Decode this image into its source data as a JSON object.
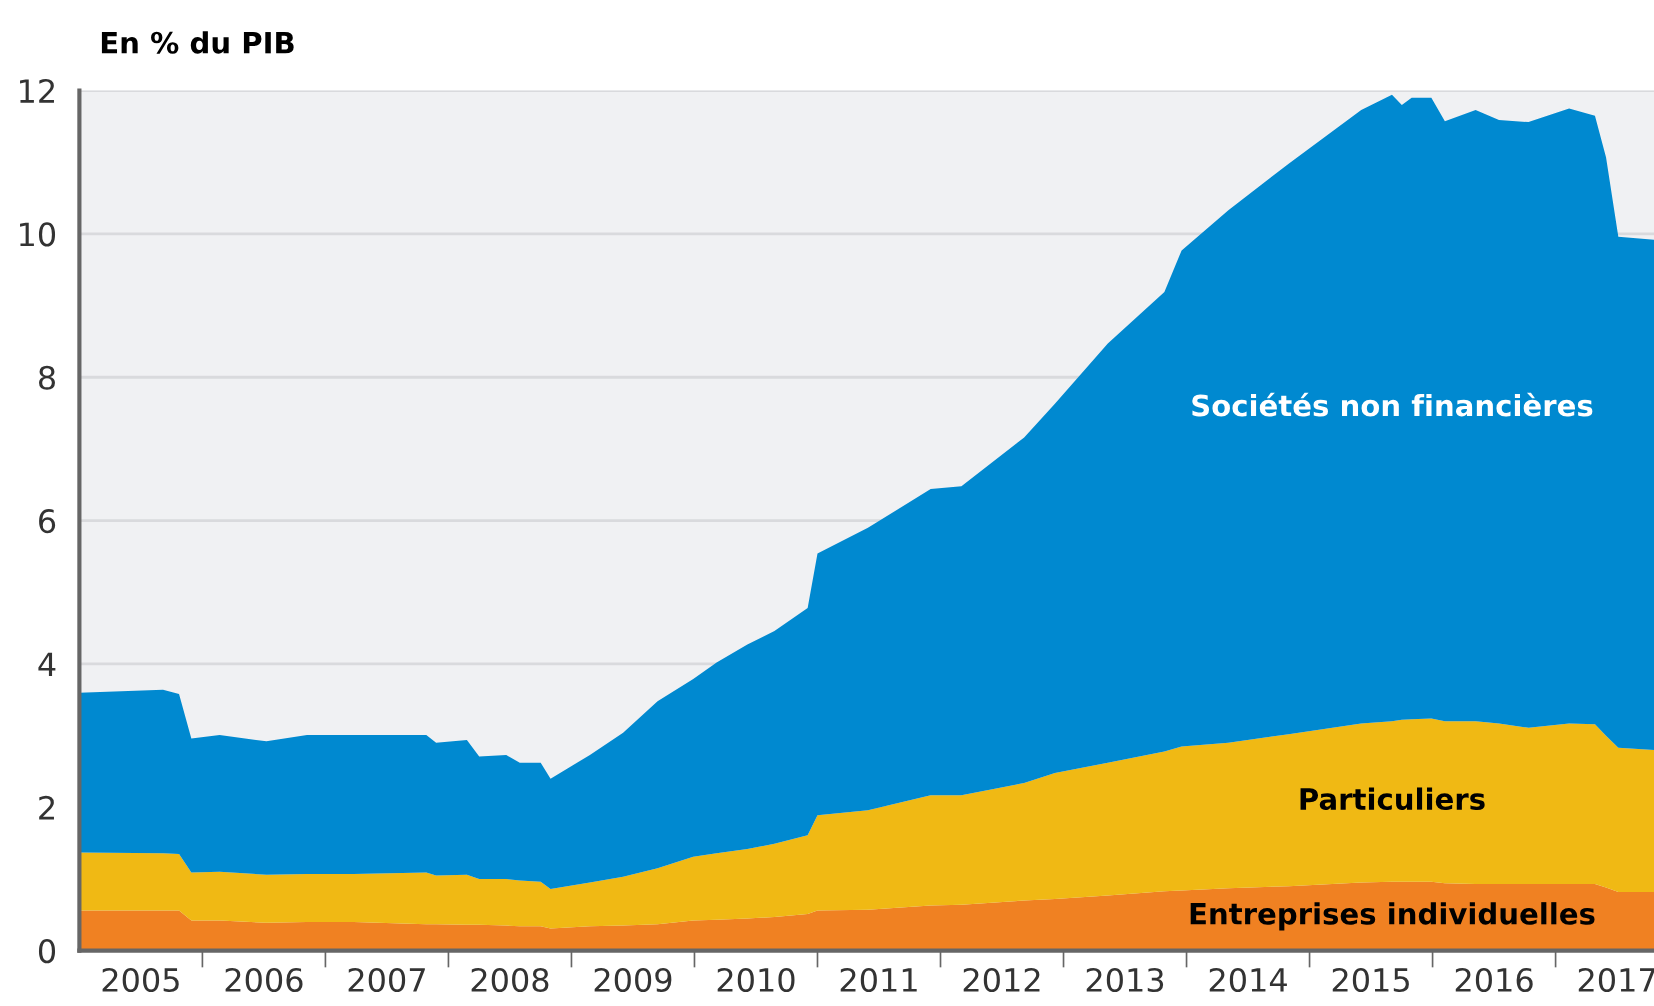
{
  "chart_data": {
    "type": "area",
    "stacked": true,
    "ylabel": "En % du PIB",
    "x": [
      2005.0,
      2005.68,
      2005.81,
      2005.91,
      2006.14,
      2006.52,
      2006.85,
      2007.23,
      2007.82,
      2007.9,
      2008.15,
      2008.25,
      2008.47,
      2008.58,
      2008.75,
      2008.83,
      2009.15,
      2009.42,
      2009.7,
      2009.99,
      2010.18,
      2010.43,
      2010.65,
      2010.92,
      2011.0,
      2011.41,
      2011.92,
      2012.17,
      2012.68,
      2012.93,
      2013.36,
      2013.82,
      2013.96,
      2014.34,
      2014.83,
      2015.42,
      2015.67,
      2015.75,
      2015.83,
      2015.99,
      2016.1,
      2016.35,
      2016.54,
      2016.78,
      2017.11,
      2017.32,
      2017.41,
      2017.51,
      2017.8
    ],
    "series": [
      {
        "name": "Entreprises individuelles",
        "color": "#f08122",
        "values": [
          0.56,
          0.56,
          0.56,
          0.42,
          0.42,
          0.39,
          0.4,
          0.4,
          0.37,
          0.37,
          0.36,
          0.36,
          0.35,
          0.34,
          0.34,
          0.31,
          0.34,
          0.35,
          0.37,
          0.42,
          0.43,
          0.45,
          0.47,
          0.51,
          0.56,
          0.57,
          0.63,
          0.64,
          0.7,
          0.72,
          0.77,
          0.83,
          0.84,
          0.87,
          0.9,
          0.95,
          0.96,
          0.96,
          0.96,
          0.96,
          0.94,
          0.93,
          0.93,
          0.93,
          0.93,
          0.93,
          0.88,
          0.82,
          0.82
        ]
      },
      {
        "name": "Particuliers",
        "color": "#f0b914",
        "values": [
          0.81,
          0.8,
          0.79,
          0.67,
          0.68,
          0.67,
          0.67,
          0.67,
          0.72,
          0.68,
          0.7,
          0.64,
          0.65,
          0.64,
          0.62,
          0.55,
          0.61,
          0.68,
          0.78,
          0.89,
          0.93,
          0.97,
          1.02,
          1.1,
          1.33,
          1.39,
          1.54,
          1.53,
          1.64,
          1.76,
          1.85,
          1.95,
          2.01,
          2.03,
          2.12,
          2.22,
          2.24,
          2.26,
          2.27,
          2.28,
          2.26,
          2.27,
          2.24,
          2.18,
          2.24,
          2.23,
          2.12,
          2.01,
          1.98
        ]
      },
      {
        "name": "Sociétés non financières",
        "color": "#0089d0",
        "values": [
          2.23,
          2.28,
          2.23,
          1.87,
          1.91,
          1.86,
          1.94,
          1.94,
          1.92,
          1.85,
          1.88,
          1.71,
          1.73,
          1.64,
          1.66,
          1.54,
          1.78,
          2.01,
          2.33,
          2.48,
          2.66,
          2.85,
          2.97,
          3.17,
          3.65,
          3.94,
          4.27,
          4.31,
          4.82,
          5.15,
          5.85,
          6.41,
          6.92,
          7.43,
          7.96,
          8.56,
          8.74,
          8.58,
          8.67,
          8.66,
          8.37,
          8.53,
          8.42,
          8.45,
          8.58,
          8.49,
          8.07,
          7.13,
          7.12
        ]
      }
    ],
    "xlim": [
      2005,
      2017.8
    ],
    "xticks": [
      {
        "value": 2005.5,
        "label": "2005"
      },
      {
        "value": 2006,
        "label": null
      },
      {
        "value": 2006.5,
        "label": "2006"
      },
      {
        "value": 2007,
        "label": null
      },
      {
        "value": 2007.5,
        "label": "2007"
      },
      {
        "value": 2008,
        "label": null
      },
      {
        "value": 2008.5,
        "label": "2008"
      },
      {
        "value": 2009,
        "label": null
      },
      {
        "value": 2009.5,
        "label": "2009"
      },
      {
        "value": 2010,
        "label": null
      },
      {
        "value": 2010.5,
        "label": "2010"
      },
      {
        "value": 2011,
        "label": null
      },
      {
        "value": 2011.5,
        "label": "2011"
      },
      {
        "value": 2012,
        "label": null
      },
      {
        "value": 2012.5,
        "label": "2012"
      },
      {
        "value": 2013,
        "label": null
      },
      {
        "value": 2013.5,
        "label": "2013"
      },
      {
        "value": 2014,
        "label": null
      },
      {
        "value": 2014.5,
        "label": "2014"
      },
      {
        "value": 2015,
        "label": null
      },
      {
        "value": 2015.5,
        "label": "2015"
      },
      {
        "value": 2016,
        "label": null
      },
      {
        "value": 2016.5,
        "label": "2016"
      },
      {
        "value": 2017,
        "label": null
      },
      {
        "value": 2017.5,
        "label": "2017"
      }
    ],
    "ylim": [
      0,
      12
    ],
    "yticks": [
      0,
      2,
      4,
      6,
      8,
      10,
      12
    ],
    "grid": "y",
    "legend": false
  }
}
